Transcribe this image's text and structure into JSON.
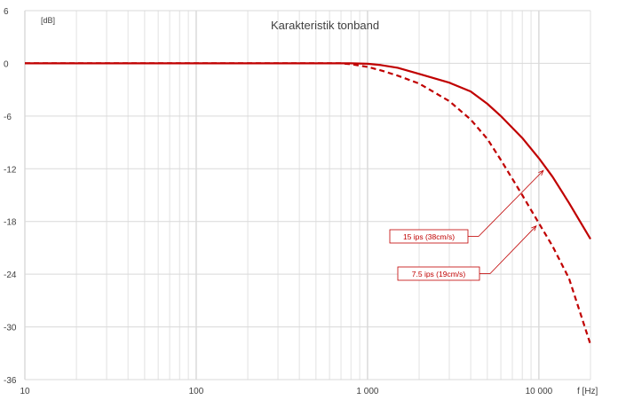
{
  "chart_data": {
    "type": "line",
    "title": "Karakteristik tonband",
    "ylabel": "[dB]",
    "xlabel": "f [Hz]",
    "x_scale": "log",
    "xlim": [
      10,
      20000
    ],
    "ylim": [
      -36,
      6
    ],
    "y_ticks": [
      6,
      0,
      -6,
      -12,
      -18,
      -24,
      -30,
      -36
    ],
    "y_tick_labels": [
      "6",
      "0",
      "-6",
      "-12",
      "-18",
      "-24",
      "-30",
      "-36"
    ],
    "x_ticks": [
      10,
      100,
      1000,
      10000
    ],
    "x_tick_labels": [
      "10",
      "100",
      "1 000",
      "10 000"
    ],
    "grid": true,
    "series_color": "#c00000",
    "series": [
      {
        "name": "15 ips (38cm/s)",
        "style": "solid",
        "x": [
          10,
          100,
          500,
          800,
          1000,
          1200,
          1500,
          2000,
          3000,
          4000,
          5000,
          6000,
          8000,
          10000,
          12000,
          15000,
          20000
        ],
        "y": [
          0,
          0,
          0,
          0,
          -0.05,
          -0.2,
          -0.5,
          -1.2,
          -2.2,
          -3.2,
          -4.6,
          -6.0,
          -8.5,
          -10.8,
          -12.9,
          -15.9,
          -20.0
        ]
      },
      {
        "name": "7.5 ips (19cm/s)",
        "style": "dashed",
        "x": [
          10,
          100,
          500,
          700,
          800,
          1000,
          1200,
          1500,
          2000,
          3000,
          4000,
          5000,
          6000,
          8000,
          10000,
          12000,
          15000,
          20000
        ],
        "y": [
          0,
          0,
          0,
          0,
          -0.1,
          -0.4,
          -0.8,
          -1.4,
          -2.3,
          -4.3,
          -6.4,
          -8.6,
          -11.0,
          -15.0,
          -18.2,
          -20.8,
          -24.5,
          -32.0
        ]
      }
    ],
    "annotations": [
      {
        "text": "15 ips (38cm/s)",
        "series": 0,
        "point_x": 11000
      },
      {
        "text": "7.5 ips (19cm/s)",
        "series": 1,
        "point_x": 10000
      }
    ]
  }
}
